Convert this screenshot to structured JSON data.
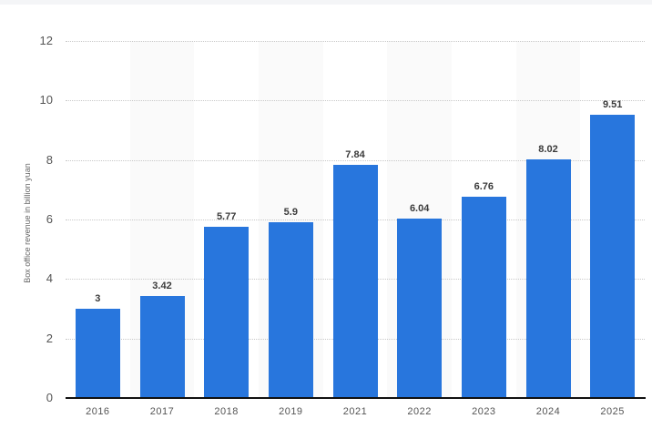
{
  "chart_data": {
    "type": "bar",
    "title": "",
    "xlabel": "",
    "ylabel": "Box office revenue in billion yuan",
    "categories": [
      "2016",
      "2017",
      "2018",
      "2019",
      "2021",
      "2022",
      "2023",
      "2024",
      "2025"
    ],
    "values": [
      3,
      3.42,
      5.77,
      5.9,
      7.84,
      6.04,
      6.76,
      8.02,
      9.51
    ],
    "value_labels": [
      "3",
      "3.42",
      "5.77",
      "5.9",
      "7.84",
      "6.04",
      "6.76",
      "8.02",
      "9.51"
    ],
    "ylim": [
      0,
      12
    ],
    "yticks": [
      "0",
      "2",
      "4",
      "6",
      "8",
      "10",
      "12"
    ],
    "grid": true,
    "legend": null,
    "bar_color": "#2876dd"
  }
}
